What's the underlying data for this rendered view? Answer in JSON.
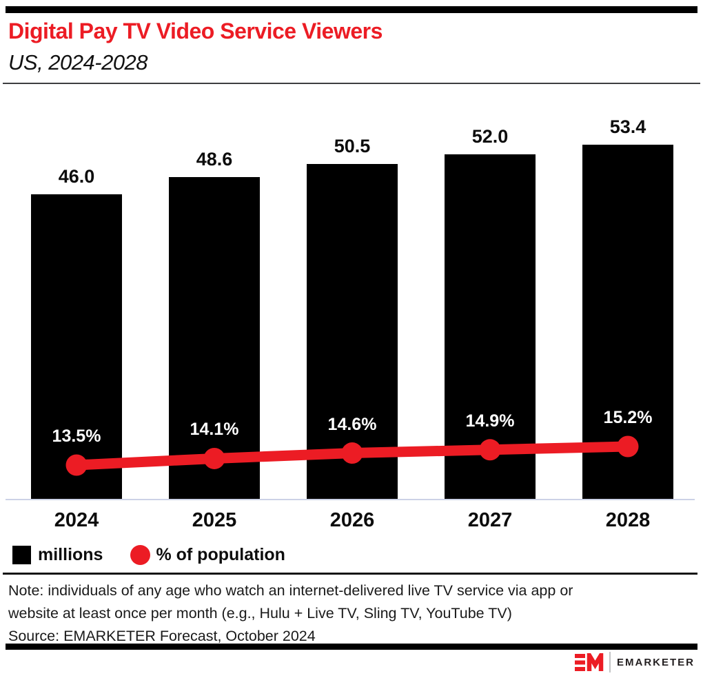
{
  "header": {
    "title": "Digital Pay TV Video Service Viewers",
    "subtitle": "US, 2024-2028"
  },
  "chart_data": {
    "type": "bar",
    "categories": [
      "2024",
      "2025",
      "2026",
      "2027",
      "2028"
    ],
    "series": [
      {
        "name": "millions",
        "type": "bar",
        "color": "#000000",
        "values": [
          46.0,
          48.6,
          50.5,
          52.0,
          53.4
        ],
        "labels": [
          "46.0",
          "48.6",
          "50.5",
          "52.0",
          "53.4"
        ]
      },
      {
        "name": "% of population",
        "type": "line",
        "color": "#ec1c24",
        "values": [
          13.5,
          14.1,
          14.6,
          14.9,
          15.2
        ],
        "labels": [
          "13.5%",
          "14.1%",
          "14.6%",
          "14.9%",
          "15.2%"
        ]
      }
    ],
    "title": "Digital Pay TV Video Service Viewers",
    "subtitle": "US, 2024-2028",
    "xlabel": "",
    "ylabel": "",
    "grid": false,
    "legend_position": "bottom-left",
    "axis_line_color": "#ccd2e6"
  },
  "legend": {
    "items": [
      {
        "label": "millions",
        "swatch": "black-square",
        "color": "#000000"
      },
      {
        "label": "% of population",
        "swatch": "red-circle",
        "color": "#ec1c24"
      }
    ]
  },
  "footnote": {
    "note_lines": [
      "Note: individuals of any age who watch an internet-delivered live TV service via app or",
      "website at least once per month (e.g., Hulu + Live TV, Sling TV, YouTube TV)"
    ],
    "source": "Source: EMARKETER Forecast, October 2024"
  },
  "footer": {
    "brand": "EMARKETER",
    "accent_color": "#ec1c24"
  }
}
